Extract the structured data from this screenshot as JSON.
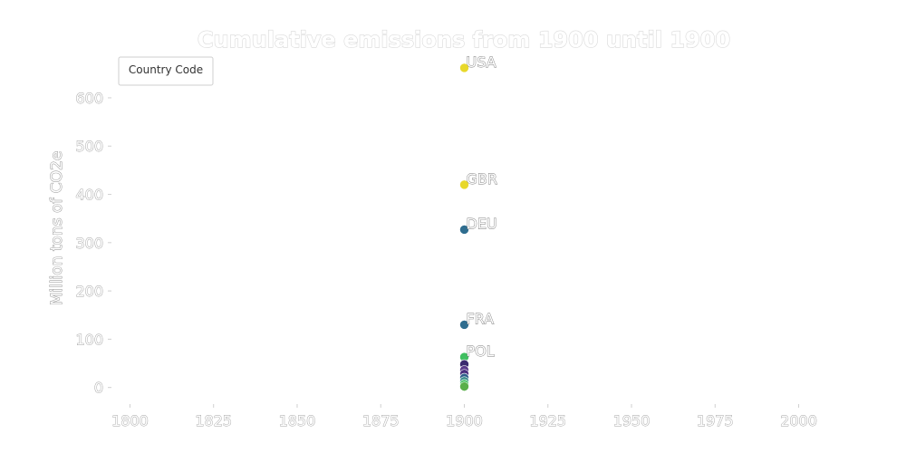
{
  "chart_data": {
    "type": "scatter",
    "title": "Cumulative emissions from 1900 until 1900",
    "xlabel": "",
    "ylabel": "Million tons of CO2e",
    "xlim": [
      1795,
      2005
    ],
    "ylim": [
      -25,
      690
    ],
    "x_ticks": [
      1800,
      1825,
      1850,
      1875,
      1900,
      1925,
      1950,
      1975,
      2000
    ],
    "y_ticks": [
      0,
      100,
      200,
      300,
      400,
      500,
      600
    ],
    "legend": {
      "title": "Country Code",
      "placement": "top-left"
    },
    "grid": false,
    "points": [
      {
        "label": "USA",
        "x": 1900,
        "y": 662,
        "color": "#e8d82a"
      },
      {
        "label": "GBR",
        "x": 1900,
        "y": 420,
        "color": "#e8d82a"
      },
      {
        "label": "DEU",
        "x": 1900,
        "y": 327,
        "color": "#2f6d8f"
      },
      {
        "label": "FRA",
        "x": 1900,
        "y": 130,
        "color": "#2f6d8f"
      },
      {
        "label": "POL",
        "x": 1900,
        "y": 63,
        "color": "#3fbf5f"
      },
      {
        "label": "",
        "x": 1900,
        "y": 48,
        "color": "#3a2a6e"
      },
      {
        "label": "",
        "x": 1900,
        "y": 36,
        "color": "#5a3a8a"
      },
      {
        "label": "",
        "x": 1900,
        "y": 28,
        "color": "#4a2f7e"
      },
      {
        "label": "",
        "x": 1900,
        "y": 20,
        "color": "#2f5f8a"
      },
      {
        "label": "",
        "x": 1900,
        "y": 13,
        "color": "#3a8f8a"
      },
      {
        "label": "",
        "x": 1900,
        "y": 7,
        "color": "#3fbf5f"
      },
      {
        "label": "",
        "x": 1900,
        "y": 2,
        "color": "#5aaf4a"
      }
    ]
  }
}
